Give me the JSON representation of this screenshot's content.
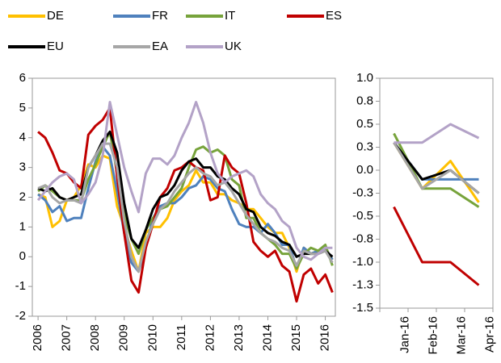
{
  "chart_data": [
    {
      "type": "line",
      "x": [
        2006,
        2006.25,
        2006.5,
        2006.75,
        2007,
        2007.25,
        2007.5,
        2007.75,
        2008,
        2008.25,
        2008.5,
        2008.75,
        2009,
        2009.25,
        2009.5,
        2009.75,
        2010,
        2010.25,
        2010.5,
        2010.75,
        2011,
        2011.25,
        2011.5,
        2011.75,
        2012,
        2012.25,
        2012.5,
        2012.75,
        2013,
        2013.25,
        2013.5,
        2013.75,
        2014,
        2014.25,
        2014.5,
        2014.75,
        2015,
        2015.25,
        2015.5,
        2015.75,
        2016,
        2016.25
      ],
      "xlim": [
        2005.8,
        2016.35
      ],
      "xticks": [
        2006,
        2007,
        2008,
        2009,
        2010,
        2011,
        2012,
        2013,
        2014,
        2015,
        2016
      ],
      "ylim": [
        -2,
        6
      ],
      "yticks": [
        -2,
        -1,
        0,
        1,
        2,
        3,
        4,
        5,
        6
      ],
      "series": [
        {
          "name": "DE",
          "color": "#ffc000",
          "values": [
            2.1,
            2.0,
            1.0,
            1.2,
            1.9,
            2.0,
            2.4,
            3.1,
            3.0,
            3.4,
            3.3,
            1.7,
            1.0,
            0.2,
            -0.5,
            0.8,
            1.0,
            1.0,
            1.3,
            1.9,
            2.2,
            2.4,
            2.9,
            2.5,
            2.5,
            2.1,
            2.1,
            1.9,
            1.8,
            1.6,
            1.6,
            1.3,
            1.0,
            0.8,
            0.8,
            0.3,
            -0.5,
            0.3,
            0.1,
            0.2,
            0.3,
            -0.1
          ]
        },
        {
          "name": "FR",
          "color": "#4f81bd",
          "values": [
            2.1,
            1.9,
            1.5,
            1.7,
            1.2,
            1.3,
            1.3,
            2.3,
            3.2,
            3.7,
            3.4,
            2.2,
            0.8,
            -0.2,
            -0.5,
            0.3,
            1.3,
            1.7,
            1.8,
            1.8,
            2.0,
            2.3,
            2.4,
            2.7,
            2.6,
            2.3,
            2.2,
            1.6,
            1.1,
            1.0,
            1.0,
            0.8,
            1.1,
            0.8,
            0.4,
            0.4,
            -0.4,
            0.3,
            0.1,
            0.2,
            0.3,
            -0.1
          ]
        },
        {
          "name": "IT",
          "color": "#77a33b",
          "values": [
            2.2,
            2.4,
            2.2,
            2.0,
            1.9,
            1.9,
            1.9,
            2.6,
            3.1,
            3.7,
            4.2,
            2.8,
            1.4,
            0.6,
            0.1,
            0.9,
            1.3,
            1.6,
            1.7,
            2.0,
            2.3,
            3.0,
            3.6,
            3.7,
            3.5,
            3.6,
            3.4,
            2.6,
            2.4,
            1.3,
            1.3,
            0.8,
            0.6,
            0.4,
            0.1,
            0.1,
            -0.4,
            0.1,
            0.3,
            0.2,
            0.4,
            -0.3
          ]
        },
        {
          "name": "ES",
          "color": "#c00000",
          "values": [
            4.2,
            4.0,
            3.5,
            2.9,
            2.8,
            2.5,
            2.3,
            4.1,
            4.4,
            4.6,
            5.0,
            2.7,
            0.8,
            -0.8,
            -1.2,
            0.3,
            1.1,
            2.0,
            2.3,
            2.9,
            3.0,
            3.2,
            3.0,
            2.9,
            1.9,
            2.0,
            3.4,
            3.0,
            2.8,
            1.8,
            0.5,
            0.2,
            0.0,
            0.2,
            -0.3,
            -0.5,
            -1.5,
            -0.6,
            -0.4,
            -0.9,
            -0.6,
            -1.2
          ]
        },
        {
          "name": "EU",
          "color": "#000000",
          "values": [
            2.3,
            2.2,
            2.3,
            2.0,
            1.9,
            2.0,
            2.1,
            3.0,
            3.4,
            3.9,
            4.2,
            3.5,
            1.8,
            0.6,
            0.3,
            0.9,
            1.6,
            2.0,
            2.1,
            2.4,
            2.9,
            3.2,
            3.3,
            3.0,
            3.0,
            2.7,
            2.6,
            2.3,
            2.1,
            1.6,
            1.5,
            1.0,
            0.8,
            0.7,
            0.5,
            0.4,
            0.0,
            0.1,
            0.1,
            0.1,
            0.2,
            0.0
          ]
        },
        {
          "name": "EA",
          "color": "#a6a6a6",
          "values": [
            2.3,
            2.4,
            2.0,
            1.8,
            1.9,
            1.9,
            1.8,
            3.0,
            3.4,
            3.8,
            3.8,
            3.0,
            1.2,
            0.0,
            -0.5,
            0.5,
            1.1,
            1.6,
            1.8,
            2.2,
            2.5,
            2.8,
            3.0,
            2.8,
            2.7,
            2.4,
            2.5,
            2.2,
            1.8,
            1.4,
            1.1,
            0.8,
            0.6,
            0.5,
            0.3,
            0.2,
            -0.3,
            0.2,
            0.1,
            0.1,
            0.2,
            -0.2
          ]
        },
        {
          "name": "UK",
          "color": "#b3a2c7",
          "values": [
            1.9,
            2.2,
            2.5,
            2.7,
            2.8,
            2.6,
            1.8,
            2.1,
            2.5,
            3.4,
            5.2,
            4.1,
            3.0,
            2.2,
            1.5,
            2.8,
            3.3,
            3.3,
            3.1,
            3.4,
            4.0,
            4.5,
            5.2,
            4.5,
            3.5,
            2.8,
            2.5,
            2.7,
            2.8,
            2.9,
            2.7,
            2.1,
            1.8,
            1.6,
            1.2,
            1.0,
            0.3,
            0.0,
            -0.1,
            0.1,
            0.3,
            0.3
          ]
        }
      ]
    },
    {
      "type": "line",
      "categories": [
        "Jan-16",
        "Feb-16",
        "Mar-16",
        "Apr-16"
      ],
      "ylim": [
        -1.5,
        1
      ],
      "yticks": [
        -1.5,
        {
          "value": -1.25,
          "label": "-1.3"
        },
        {
          "value": -1,
          "label": "-1.0"
        },
        {
          "value": -0.75,
          "label": "-0.8"
        },
        -0.5,
        {
          "value": -0.25,
          "label": "-0.3"
        },
        {
          "value": 0,
          "label": "0.0"
        },
        {
          "value": 0.25,
          "label": "0.3"
        },
        0.5,
        {
          "value": 0.75,
          "label": "0.8"
        },
        {
          "value": 1,
          "label": "1.0"
        }
      ],
      "series": [
        {
          "color": "#ffc000",
          "values": [
            0.3,
            -0.2,
            0.1,
            -0.35
          ]
        },
        {
          "color": "#4f81bd",
          "values": [
            0.3,
            -0.1,
            -0.1,
            -0.1
          ]
        },
        {
          "color": "#77a33b",
          "values": [
            0.4,
            -0.2,
            -0.2,
            -0.4
          ]
        },
        {
          "color": "#c00000",
          "values": [
            -0.4,
            -1.0,
            -1.0,
            -1.25
          ]
        },
        {
          "color": "#000000",
          "values": [
            0.3,
            -0.1,
            0.0,
            -0.25
          ]
        },
        {
          "color": "#a6a6a6",
          "values": [
            0.3,
            -0.2,
            0.0,
            -0.25
          ]
        },
        {
          "color": "#b3a2c7",
          "values": [
            0.3,
            0.3,
            0.5,
            0.35
          ]
        }
      ]
    }
  ]
}
